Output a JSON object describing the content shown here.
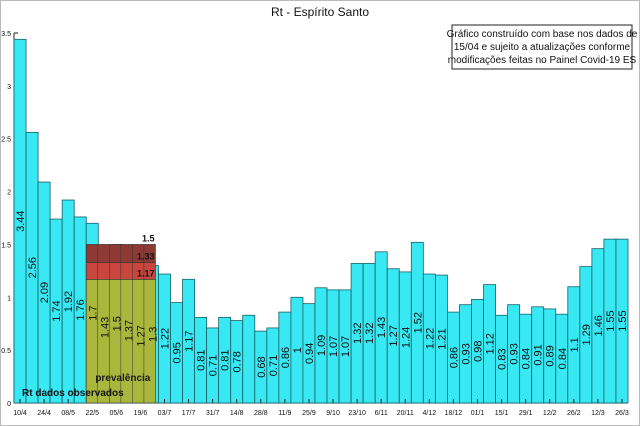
{
  "chart_data": {
    "type": "bar",
    "title": "Rt - Espírito Santo",
    "note": [
      "Gráfico construído com base nos dados de",
      "15/04 e sujeito a atualizações conforme",
      "modificações feitas no Painel Covid-19 ES"
    ],
    "observed_label": "Rt dados observados",
    "categories": [
      "10/4",
      null,
      "24/4",
      null,
      "08/5",
      null,
      "22/5",
      null,
      "05/6",
      null,
      "19/6",
      null,
      "03/7",
      null,
      "17/7",
      null,
      "31/7",
      null,
      "14/8",
      null,
      "28/8",
      null,
      "11/9",
      null,
      "25/9",
      null,
      "9/10",
      null,
      "23/10",
      null,
      "6/11",
      null,
      "20/11",
      null,
      "4/12",
      null,
      "18/12",
      null,
      "01/1",
      null,
      "15/1",
      null,
      "29/1",
      null,
      "12/2",
      null,
      "26/2",
      null,
      "12/3",
      null,
      "26/3"
    ],
    "values": [
      3.44,
      2.56,
      2.09,
      1.74,
      1.92,
      1.76,
      1.7,
      1.43,
      1.5,
      1.37,
      1.27,
      1.3,
      1.22,
      0.95,
      1.17,
      0.81,
      0.71,
      0.81,
      0.78,
      0.83,
      0.68,
      0.71,
      0.86,
      1,
      0.94,
      1.09,
      1.07,
      1.07,
      1.32,
      1.32,
      1.43,
      1.27,
      1.24,
      1.52,
      1.22,
      1.21,
      0.86,
      0.93,
      0.98,
      1.12,
      0.83,
      0.93,
      0.84,
      0.91,
      0.89,
      0.84,
      1.1,
      1.29,
      1.46,
      1.55,
      1.55
    ],
    "value_labels": [
      "3.44",
      "2.56",
      "2.09",
      "1.74",
      "1.92",
      "1.76",
      "1.7",
      "1.43",
      "1.5",
      "1.37",
      "1.27",
      "1.3",
      "1.22",
      "0.95",
      "1.17",
      "0.81",
      "0.71",
      "0.81",
      "0.78",
      null,
      "0.68",
      "0.71",
      "0.86",
      "1",
      "0.94",
      "1.09",
      "1.07",
      "1.07",
      "1.32",
      "1.32",
      "1.43",
      "1.27",
      "1.24",
      "1.52",
      "1.22",
      "1.21",
      "0.86",
      "0.93",
      "0.98",
      "1.12",
      "0.83",
      "0.93",
      "0.84",
      "0.91",
      "0.89",
      "0.84",
      "1.1",
      "1.29",
      "1.46",
      "1.55",
      "1.55"
    ],
    "color": "#38e8f2",
    "prevalence": {
      "label": "prevalência",
      "levels": [
        1.17,
        1.33,
        1.5
      ],
      "colors": [
        "#a9b83c",
        "#c9463e",
        "#8e3a34"
      ]
    },
    "ylim": [
      0,
      3.5
    ],
    "yticks": [
      0,
      0.5,
      1,
      1.5,
      2,
      2.5,
      3,
      3.5
    ]
  }
}
